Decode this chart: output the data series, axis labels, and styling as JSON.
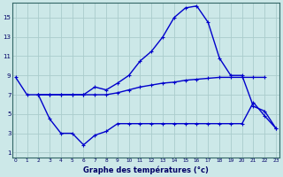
{
  "xlabel": "Graphe des températures (°c)",
  "background_color": "#cce8e8",
  "grid_color": "#aacccc",
  "line_color": "#0000cc",
  "x_ticks": [
    0,
    1,
    2,
    3,
    4,
    5,
    6,
    7,
    8,
    9,
    10,
    11,
    12,
    13,
    14,
    15,
    16,
    17,
    18,
    19,
    20,
    21,
    22,
    23
  ],
  "y_ticks": [
    1,
    3,
    5,
    7,
    9,
    11,
    13,
    15
  ],
  "xlim": [
    -0.3,
    23.3
  ],
  "ylim": [
    0.5,
    16.5
  ],
  "line_top": [
    8.8,
    7.0,
    7.0,
    7.0,
    7.0,
    7.0,
    7.0,
    7.8,
    7.5,
    8.2,
    9.0,
    10.5,
    11.5,
    13.0,
    15.0,
    16.0,
    16.2,
    14.5,
    10.8,
    9.0,
    9.0,
    5.8,
    5.3,
    3.5
  ],
  "line_mid": [
    null,
    null,
    7.0,
    7.0,
    7.0,
    7.0,
    7.0,
    7.0,
    7.0,
    7.2,
    7.5,
    7.8,
    8.0,
    8.2,
    8.3,
    8.5,
    8.6,
    8.7,
    8.8,
    8.8,
    8.8,
    8.8,
    8.8,
    null
  ],
  "line_bot": [
    null,
    null,
    7.0,
    4.5,
    3.0,
    3.0,
    1.8,
    2.8,
    3.2,
    4.0,
    4.0,
    4.0,
    4.0,
    4.0,
    4.0,
    4.0,
    4.0,
    4.0,
    4.0,
    4.0,
    4.0,
    6.2,
    4.8,
    3.5
  ]
}
